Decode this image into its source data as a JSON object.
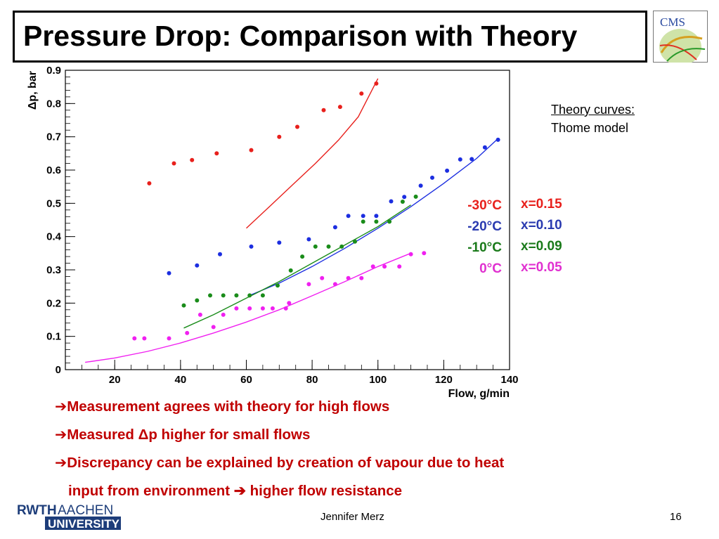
{
  "slide": {
    "title": "Pressure Drop: Comparison with Theory",
    "logo_text": "CMS",
    "university_logo": {
      "line1a": "RWTH",
      "line1b": "AACHEN",
      "line2": "UNIVERSITY"
    },
    "author": "Jennifer Merz",
    "page": "16"
  },
  "notes": {
    "theory_heading": "Theory curves:",
    "theory_model": "Thome model"
  },
  "legend": {
    "temperatures": [
      "-30°C",
      "-20°C",
      "-10°C",
      "0°C"
    ],
    "qualities": [
      "x=0.15",
      "x=0.10",
      "x=0.09",
      "x=0.05"
    ]
  },
  "bullets": [
    {
      "arrow": "➔",
      "text": "Measurement agrees with theory for high flows"
    },
    {
      "arrow": "➔",
      "text": "Measured Δp higher for small flows"
    },
    {
      "arrow": "➔",
      "text": "Discrepancy can be explained by creation of vapour due to heat"
    },
    {
      "arrow": "",
      "text": "input from environment ➔ higher flow resistance"
    }
  ],
  "colors": {
    "red": "#e8201c",
    "blue": "#1c2ee0",
    "green": "#1a8c1a",
    "magenta": "#f020f0",
    "bullet_text": "#c00000"
  },
  "chart_data": {
    "type": "scatter",
    "title": "",
    "xlabel": "Flow, g/min",
    "ylabel": "Δp, bar",
    "xlim": [
      5,
      140
    ],
    "ylim": [
      0,
      0.9
    ],
    "x_ticks": [
      20,
      40,
      60,
      80,
      100,
      120,
      140
    ],
    "y_ticks": [
      0,
      0.1,
      0.2,
      0.3,
      0.4,
      0.5,
      0.6,
      0.7,
      0.8,
      0.9
    ],
    "grid": false,
    "series": [
      {
        "name": "-30°C",
        "color": "#e8201c",
        "points": [
          [
            30.5,
            0.56
          ],
          [
            38,
            0.62
          ],
          [
            43.5,
            0.63
          ],
          [
            51,
            0.65
          ],
          [
            61.5,
            0.66
          ],
          [
            70,
            0.7
          ],
          [
            75.5,
            0.73
          ],
          [
            83.5,
            0.78
          ],
          [
            88.5,
            0.79
          ],
          [
            95,
            0.83
          ],
          [
            99.5,
            0.86
          ]
        ],
        "theory": [
          [
            60,
            0.425
          ],
          [
            67,
            0.49
          ],
          [
            74,
            0.555
          ],
          [
            81,
            0.62
          ],
          [
            88,
            0.69
          ],
          [
            94,
            0.76
          ],
          [
            100,
            0.875
          ]
        ]
      },
      {
        "name": "-20°C",
        "color": "#1c2ee0",
        "points": [
          [
            36.5,
            0.29
          ],
          [
            45,
            0.313
          ],
          [
            52,
            0.347
          ],
          [
            61.5,
            0.37
          ],
          [
            70,
            0.382
          ],
          [
            79,
            0.392
          ],
          [
            87,
            0.428
          ],
          [
            91,
            0.462
          ],
          [
            95.5,
            0.462
          ],
          [
            99.5,
            0.462
          ],
          [
            104,
            0.506
          ],
          [
            108,
            0.519
          ],
          [
            113,
            0.553
          ],
          [
            116.5,
            0.577
          ],
          [
            121,
            0.598
          ],
          [
            125,
            0.632
          ],
          [
            128.5,
            0.633
          ],
          [
            132.5,
            0.668
          ],
          [
            136.5,
            0.691
          ]
        ],
        "theory": [
          [
            61,
            0.223
          ],
          [
            70,
            0.26
          ],
          [
            80,
            0.31
          ],
          [
            90,
            0.365
          ],
          [
            100,
            0.425
          ],
          [
            110,
            0.49
          ],
          [
            120,
            0.56
          ],
          [
            130,
            0.635
          ],
          [
            136,
            0.69
          ]
        ]
      },
      {
        "name": "-10°C",
        "color": "#1a8c1a",
        "points": [
          [
            41,
            0.193
          ],
          [
            45,
            0.208
          ],
          [
            49,
            0.223
          ],
          [
            53,
            0.223
          ],
          [
            57,
            0.223
          ],
          [
            61,
            0.223
          ],
          [
            65,
            0.223
          ],
          [
            69.5,
            0.253
          ],
          [
            73.5,
            0.298
          ],
          [
            77,
            0.34
          ],
          [
            81,
            0.37
          ],
          [
            85,
            0.37
          ],
          [
            89,
            0.37
          ],
          [
            93,
            0.385
          ],
          [
            95.5,
            0.445
          ],
          [
            99.5,
            0.445
          ],
          [
            103.5,
            0.445
          ],
          [
            107.5,
            0.505
          ],
          [
            111.5,
            0.52
          ]
        ],
        "theory": [
          [
            41,
            0.125
          ],
          [
            50,
            0.165
          ],
          [
            60,
            0.215
          ],
          [
            70,
            0.265
          ],
          [
            80,
            0.32
          ],
          [
            90,
            0.375
          ],
          [
            100,
            0.43
          ],
          [
            110,
            0.495
          ]
        ]
      },
      {
        "name": "0°C",
        "color": "#f020f0",
        "points": [
          [
            26,
            0.094
          ],
          [
            29,
            0.094
          ],
          [
            36.5,
            0.094
          ],
          [
            42,
            0.11
          ],
          [
            46,
            0.165
          ],
          [
            50,
            0.128
          ],
          [
            53,
            0.165
          ],
          [
            57,
            0.184
          ],
          [
            61,
            0.184
          ],
          [
            65,
            0.184
          ],
          [
            68,
            0.184
          ],
          [
            72,
            0.184
          ],
          [
            73,
            0.2
          ],
          [
            79,
            0.257
          ],
          [
            83,
            0.275
          ],
          [
            87,
            0.257
          ],
          [
            91,
            0.275
          ],
          [
            95,
            0.275
          ],
          [
            98.5,
            0.31
          ],
          [
            102,
            0.31
          ],
          [
            106.5,
            0.31
          ],
          [
            110,
            0.347
          ],
          [
            114,
            0.35
          ]
        ],
        "theory": [
          [
            11,
            0.022
          ],
          [
            20,
            0.035
          ],
          [
            30,
            0.055
          ],
          [
            40,
            0.08
          ],
          [
            50,
            0.11
          ],
          [
            60,
            0.143
          ],
          [
            70,
            0.18
          ],
          [
            80,
            0.222
          ],
          [
            90,
            0.265
          ],
          [
            100,
            0.31
          ],
          [
            110,
            0.35
          ]
        ]
      }
    ]
  }
}
